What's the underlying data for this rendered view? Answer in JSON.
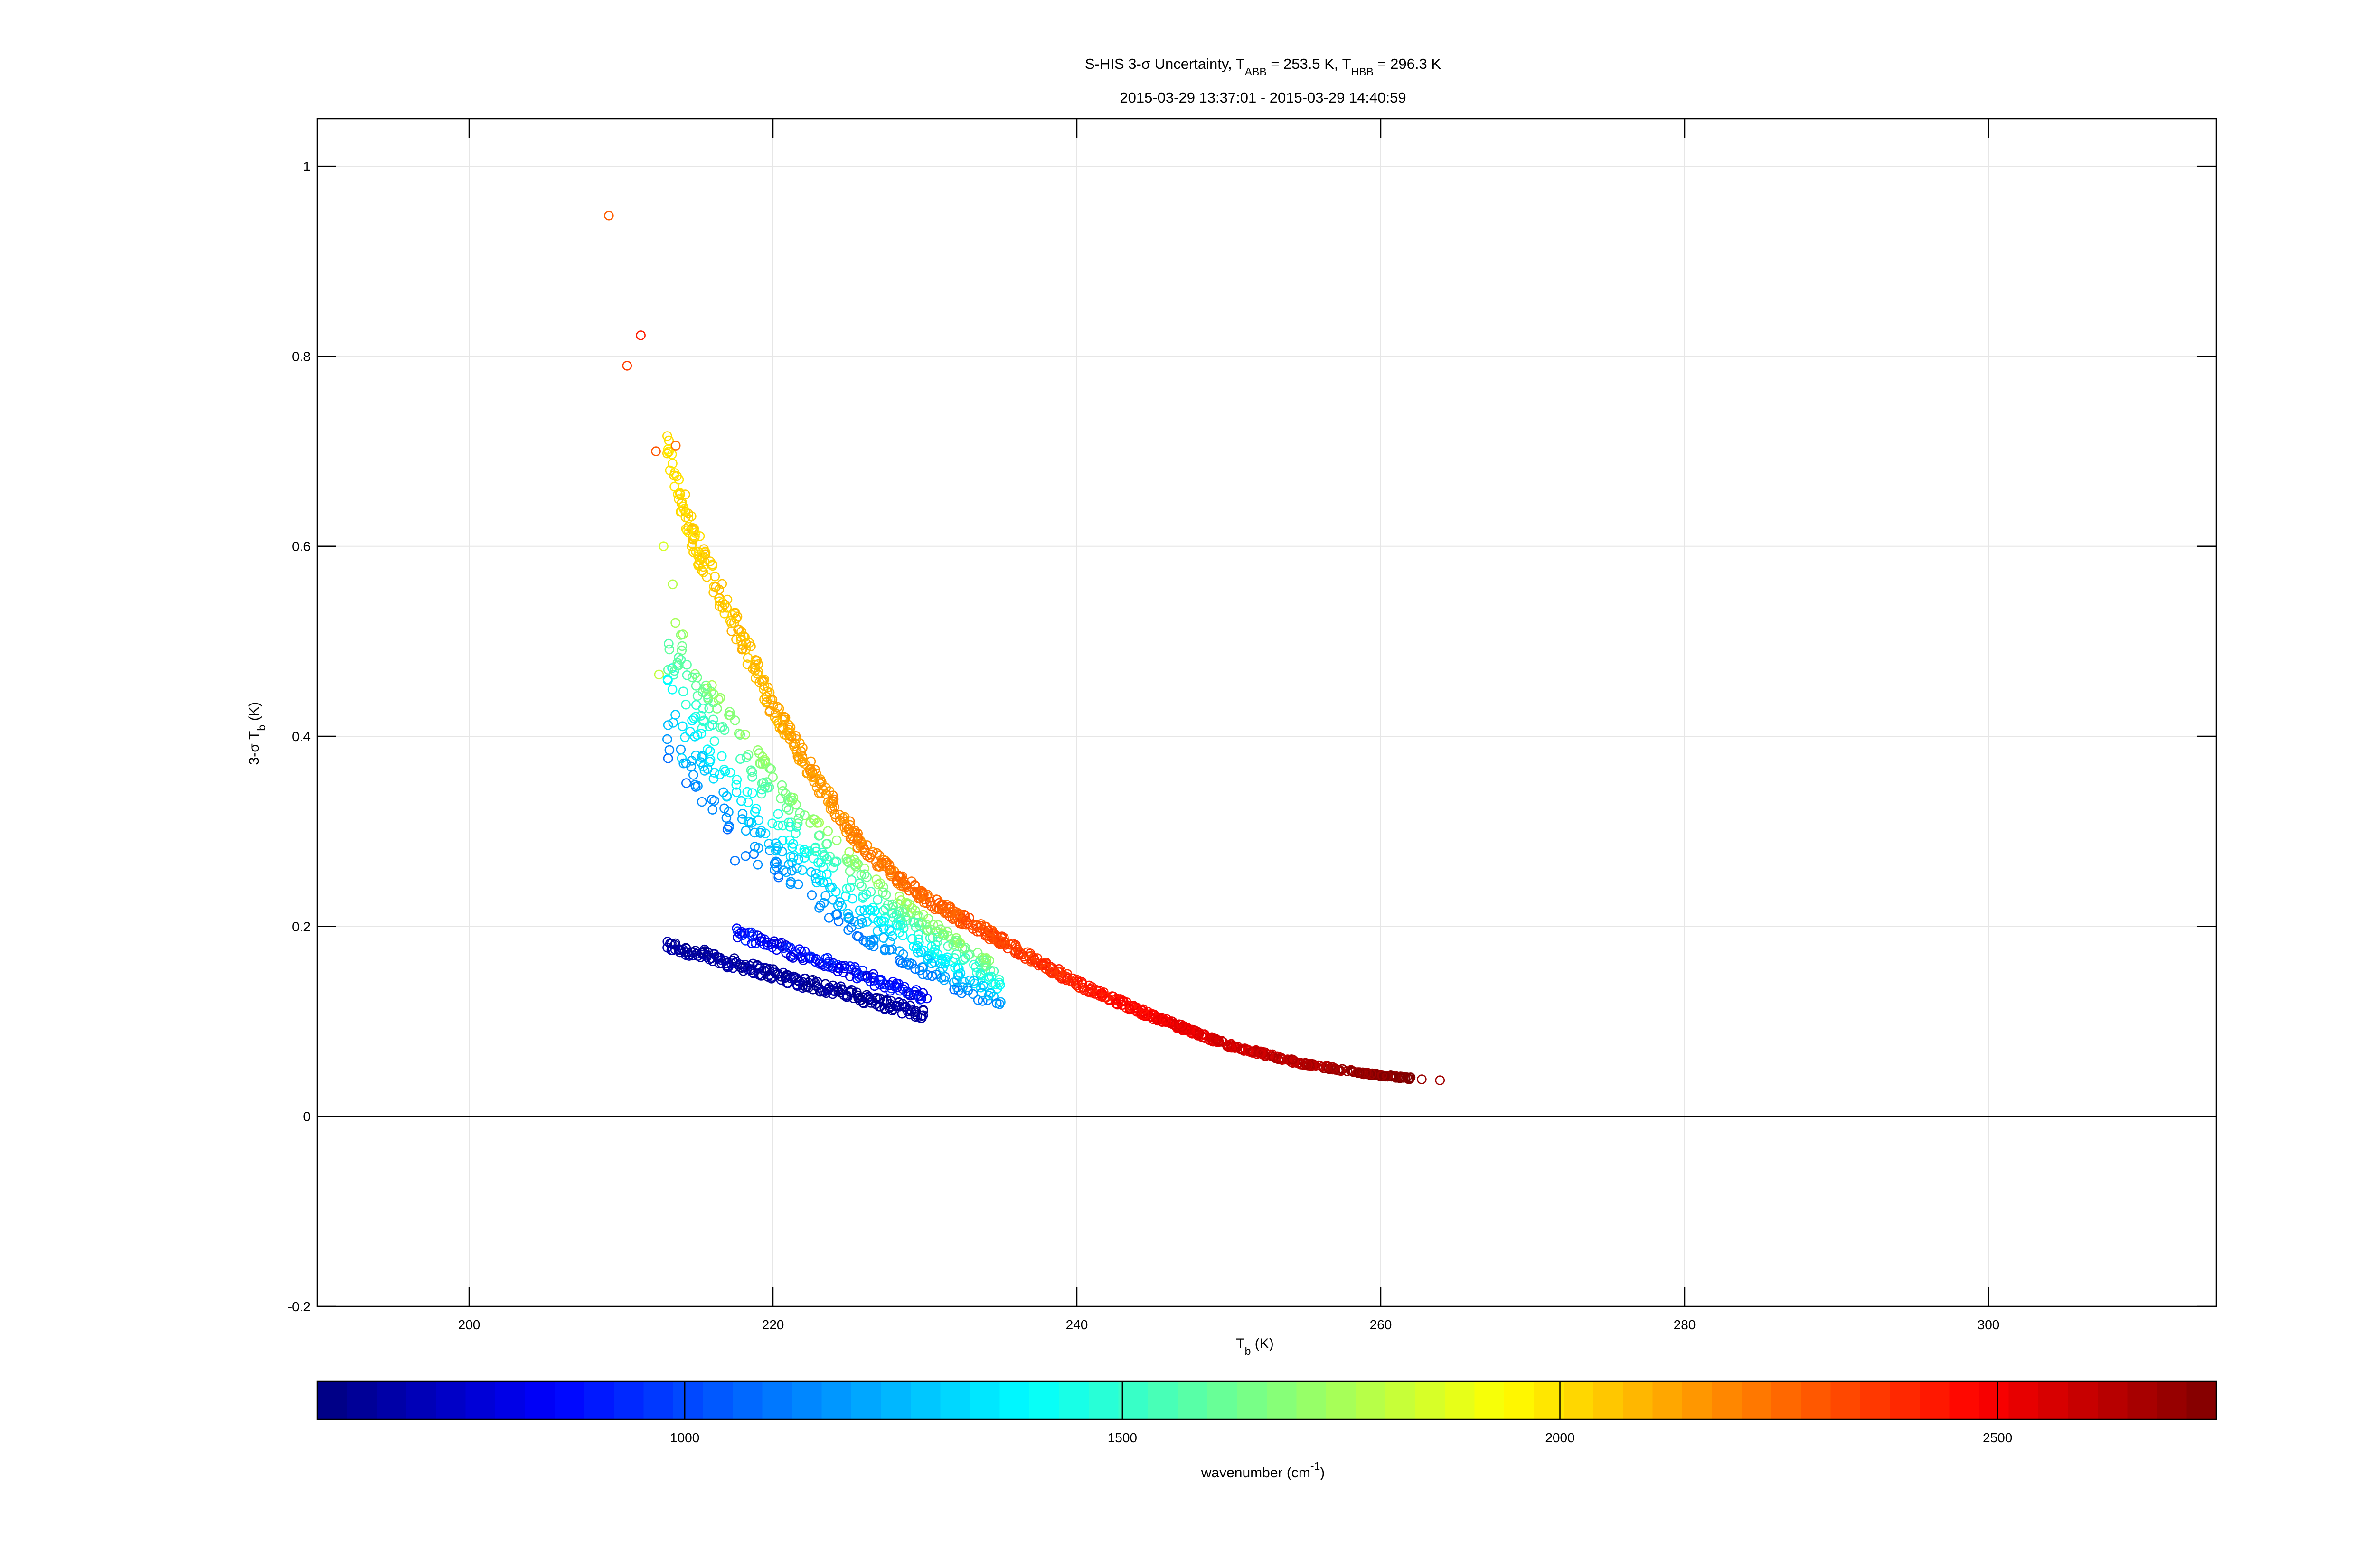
{
  "chart_data": {
    "type": "scatter",
    "title": {
      "prefix": "S-HIS 3-σ Uncertainty, T",
      "sub1": "ABB",
      "mid": " = 253.5 K, T",
      "sub2": "HBB",
      "suffix": " = 296.3 K"
    },
    "subtitle": "2015-03-29 13:37:01 - 2015-03-29 14:40:59",
    "xlabel": {
      "main": "T",
      "sub": "b",
      "unit": " (K)"
    },
    "ylabel": {
      "pre": "3-σ T",
      "sub": "b",
      "unit": " (K)"
    },
    "xlim": [
      190,
      315
    ],
    "ylim": [
      -0.2,
      1.05
    ],
    "xticks": [
      200,
      220,
      240,
      260,
      280,
      300
    ],
    "yticks": [
      -0.2,
      0,
      0.2,
      0.4,
      0.6,
      0.8,
      1
    ],
    "ytick_labels": [
      "-0.2",
      "0",
      "0.2",
      "0.4",
      "0.6",
      "0.8",
      "1"
    ],
    "grid": true,
    "zero_line": true,
    "marker": "open-circle",
    "colorbar": {
      "label": {
        "main": "wavenumber (cm",
        "sup": "-1",
        "close": ")"
      },
      "range": [
        580,
        2750
      ],
      "ticks": [
        1000,
        1500,
        2000,
        2500
      ],
      "colormap": "jet"
    },
    "series": [
      {
        "band": "longwave-low",
        "wavenumber_range": [
          590,
          700
        ],
        "x_range": [
          213,
          230
        ],
        "y_start": 0.18,
        "y_end": 0.107,
        "count": 220
      },
      {
        "band": "longwave-upper",
        "wavenumber_range": [
          760,
          960
        ],
        "x_range": [
          217.5,
          230
        ],
        "y_start": 0.195,
        "y_end": 0.125,
        "count": 130
      },
      {
        "band": "midwave",
        "wavenumber_range": [
          1050,
          1800
        ],
        "x_range": [
          213,
          235
        ],
        "y_at_213": 0.47,
        "y_at_235": 0.14,
        "count": 560
      },
      {
        "band": "shortwave",
        "wavenumber_range": [
          2000,
          2750
        ],
        "x_range": [
          213,
          262
        ],
        "curve_points": [
          [
            213,
            0.7
          ],
          [
            215,
            0.6
          ],
          [
            218,
            0.5
          ],
          [
            220,
            0.43
          ],
          [
            223,
            0.35
          ],
          [
            226,
            0.28
          ],
          [
            230,
            0.23
          ],
          [
            235,
            0.185
          ],
          [
            240,
            0.14
          ],
          [
            245,
            0.105
          ],
          [
            250,
            0.075
          ],
          [
            255,
            0.055
          ],
          [
            260,
            0.043
          ],
          [
            262,
            0.04
          ]
        ],
        "count": 900
      },
      {
        "band": "outliers",
        "points": [
          {
            "x": 209.2,
            "y": 0.948,
            "wn": 2280
          },
          {
            "x": 210.4,
            "y": 0.79,
            "wn": 2350
          },
          {
            "x": 211.3,
            "y": 0.822,
            "wn": 2420
          },
          {
            "x": 212.3,
            "y": 0.7,
            "wn": 2300
          },
          {
            "x": 213.6,
            "y": 0.706,
            "wn": 2250
          },
          {
            "x": 212.8,
            "y": 0.6,
            "wn": 1850
          },
          {
            "x": 213.4,
            "y": 0.56,
            "wn": 1780
          },
          {
            "x": 212.5,
            "y": 0.465,
            "wn": 1800
          },
          {
            "x": 213.1,
            "y": 0.47,
            "wn": 1600
          },
          {
            "x": 262.7,
            "y": 0.039,
            "wn": 2700
          },
          {
            "x": 263.9,
            "y": 0.038,
            "wn": 2680
          },
          {
            "x": 214,
            "y": 0.377,
            "wn": 1320
          },
          {
            "x": 215.3,
            "y": 0.378,
            "wn": 1280
          },
          {
            "x": 217.5,
            "y": 0.269,
            "wn": 1100
          },
          {
            "x": 218.2,
            "y": 0.274,
            "wn": 1120
          },
          {
            "x": 219,
            "y": 0.265,
            "wn": 1150
          }
        ]
      }
    ]
  }
}
